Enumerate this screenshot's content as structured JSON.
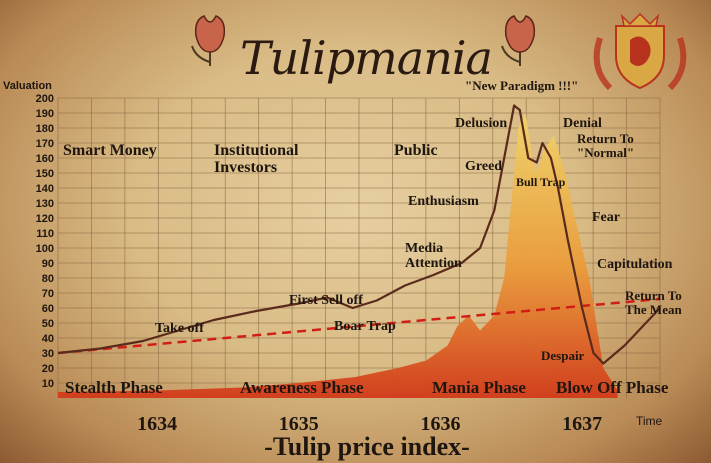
{
  "title": "Tulipmania",
  "caption": "-Tulip price index-",
  "chart_data": {
    "type": "area",
    "title": "Tulipmania",
    "subtitle": "-Tulip price index-",
    "ylabel": "Valuation",
    "xlabel": "Time",
    "ylim": [
      0,
      200
    ],
    "xlim": [
      1633.3,
      1637.55
    ],
    "grid": true,
    "yticks": [
      "10",
      "20",
      "30",
      "40",
      "50",
      "60",
      "70",
      "80",
      "90",
      "100",
      "110",
      "120",
      "130",
      "140",
      "150",
      "160",
      "170",
      "180",
      "190",
      "200"
    ],
    "xticks": [
      "1634",
      "1635",
      "1636",
      "1637"
    ],
    "series": [
      {
        "kind": "line",
        "x": [
          1633.3,
          1633.6,
          1633.9,
          1634.15,
          1634.4,
          1634.7,
          1635.0,
          1635.2,
          1635.38,
          1635.55,
          1635.75,
          1635.95,
          1636.15,
          1636.28,
          1636.38,
          1636.45,
          1636.52,
          1636.56,
          1636.62,
          1636.68,
          1636.72,
          1636.78,
          1636.83,
          1636.9,
          1637.0,
          1637.08,
          1637.15,
          1637.3,
          1637.4,
          1637.5,
          1637.55
        ],
        "y": [
          30,
          33,
          38,
          45,
          52,
          58,
          63,
          67,
          60,
          65,
          75,
          82,
          90,
          100,
          125,
          160,
          195,
          192,
          160,
          157,
          170,
          160,
          140,
          105,
          60,
          30,
          23,
          35,
          45,
          55,
          60
        ]
      },
      {
        "kind": "area",
        "x": [
          1633.3,
          1634.0,
          1634.6,
          1635.0,
          1635.4,
          1635.7,
          1635.9,
          1636.05,
          1636.12,
          1636.2,
          1636.28,
          1636.38,
          1636.45,
          1636.5,
          1636.55,
          1636.6,
          1636.65,
          1636.68,
          1636.73,
          1636.8,
          1636.88,
          1636.95,
          1637.05,
          1637.15,
          1637.25
        ],
        "y": [
          4,
          5,
          7,
          10,
          14,
          20,
          25,
          35,
          48,
          55,
          45,
          55,
          80,
          130,
          180,
          190,
          160,
          150,
          165,
          175,
          150,
          120,
          80,
          20,
          5
        ]
      },
      {
        "kind": "trend",
        "x": [
          1633.3,
          1637.55
        ],
        "y": [
          30,
          66
        ]
      }
    ],
    "annotations": [
      {
        "text": "Smart Money"
      },
      {
        "text": "Institutional Investors"
      },
      {
        "text": "Public"
      },
      {
        "text": "\"New Paradigm !!!\""
      },
      {
        "text": "Delusion"
      },
      {
        "text": "Denial"
      },
      {
        "text": "Return To \"Normal\""
      },
      {
        "text": "Greed"
      },
      {
        "text": "Bull Trap"
      },
      {
        "text": "Enthusiasm"
      },
      {
        "text": "Fear"
      },
      {
        "text": "Media Attention"
      },
      {
        "text": "Capitulation"
      },
      {
        "text": "First Sell off"
      },
      {
        "text": "Return To The Mean"
      },
      {
        "text": "Take off"
      },
      {
        "text": "Boar Trap"
      },
      {
        "text": "Despair"
      },
      {
        "text": "Stealth Phase"
      },
      {
        "text": "Awareness Phase"
      },
      {
        "text": "Mania Phase"
      },
      {
        "text": "Blow Off Phase"
      }
    ]
  },
  "colors": {
    "paper": "#dcc190",
    "grid": "#8a6a45",
    "line": "#5a2a1c",
    "trend": "#d11e14",
    "area_top": "#f0d46a",
    "area_bottom": "#d23a1a",
    "text": "#1f1610",
    "crest_red": "#b8331e"
  },
  "icons": [
    "tulip-flower-icon",
    "heraldic-crest-icon"
  ]
}
